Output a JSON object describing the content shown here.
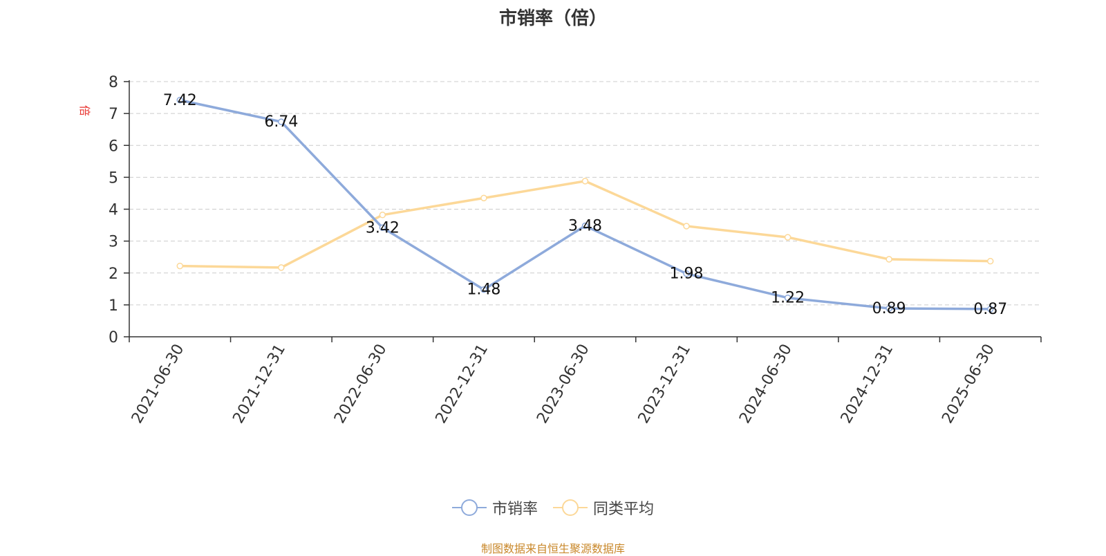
{
  "chart_data": {
    "type": "line",
    "title": "市销率（倍）",
    "unit_label": "倍",
    "categories": [
      "2021-06-30",
      "2021-12-31",
      "2022-06-30",
      "2022-12-31",
      "2023-06-30",
      "2023-12-31",
      "2024-06-30",
      "2024-12-31",
      "2025-06-30"
    ],
    "ylim": [
      0,
      8
    ],
    "yticks": [
      0,
      1,
      2,
      3,
      4,
      5,
      6,
      7,
      8
    ],
    "grid": true,
    "legend_position": "bottom",
    "series": [
      {
        "name": "市销率",
        "color": "#8eaadb",
        "values": [
          7.42,
          6.74,
          3.42,
          1.48,
          3.48,
          1.98,
          1.22,
          0.89,
          0.87
        ],
        "labels_shown": true
      },
      {
        "name": "同类平均",
        "color": "#fcd898",
        "values": [
          2.22,
          2.17,
          3.82,
          4.35,
          4.88,
          3.47,
          3.12,
          2.43,
          2.37
        ],
        "labels_shown": false
      }
    ],
    "source_note": "制图数据来自恒生聚源数据库"
  }
}
